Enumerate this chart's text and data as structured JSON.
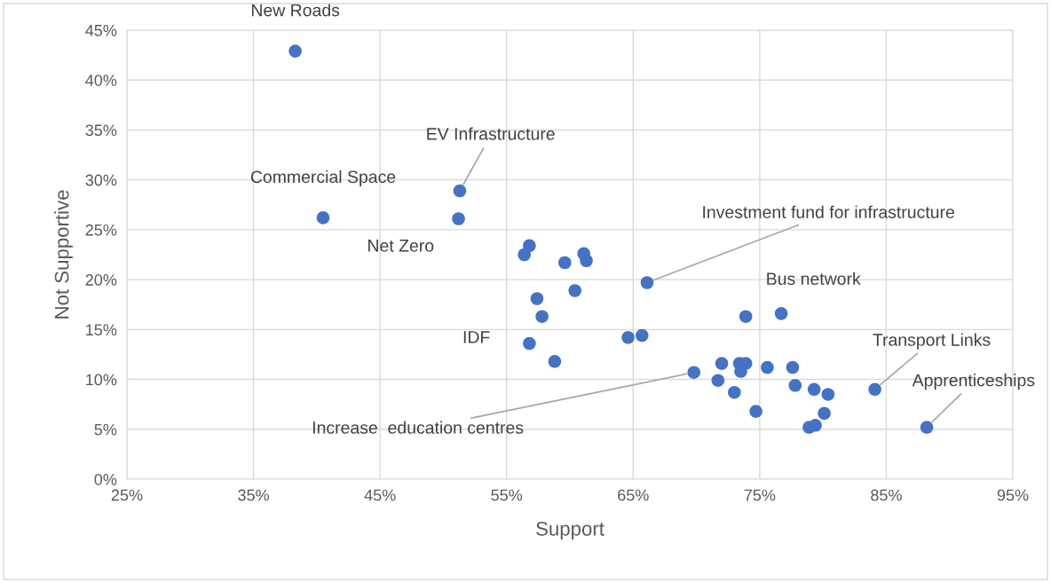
{
  "chart_data": {
    "type": "scatter",
    "xlabel": "Support",
    "ylabel": "Not Supportive",
    "x": [
      38.3,
      40.5,
      51.3,
      51.2,
      56.4,
      56.8,
      59.6,
      61.1,
      61.3,
      57.4,
      57.8,
      60.4,
      56.8,
      58.8,
      64.6,
      65.7,
      66.1,
      73.9,
      76.7,
      69.8,
      72.0,
      71.7,
      73.0,
      73.4,
      73.9,
      73.5,
      74.7,
      75.6,
      77.6,
      77.8,
      79.3,
      80.4,
      80.1,
      78.9,
      79.4,
      84.1,
      88.2
    ],
    "values": [
      42.9,
      26.2,
      28.9,
      26.1,
      22.5,
      23.4,
      21.7,
      22.6,
      21.9,
      18.1,
      16.3,
      18.9,
      13.6,
      11.8,
      14.2,
      14.4,
      19.7,
      16.3,
      16.6,
      10.7,
      11.6,
      9.9,
      8.7,
      11.6,
      11.6,
      10.8,
      6.8,
      11.2,
      11.2,
      9.4,
      9.0,
      8.5,
      6.6,
      5.2,
      5.4,
      9.0,
      5.2
    ],
    "color": "#4472c4",
    "marker": "circle",
    "grid": true,
    "xlim": [
      25,
      95
    ],
    "xticks": [
      {
        "value": 25,
        "label": "25%"
      },
      {
        "value": 35,
        "label": "35%"
      },
      {
        "value": 45,
        "label": "45%"
      },
      {
        "value": 55,
        "label": "55%"
      },
      {
        "value": 65,
        "label": "65%"
      },
      {
        "value": 75,
        "label": "75%"
      },
      {
        "value": 85,
        "label": "85%"
      },
      {
        "value": 95,
        "label": "95%"
      }
    ],
    "ylim": [
      0,
      45
    ],
    "yticks": [
      {
        "value": 0,
        "label": "0%"
      },
      {
        "value": 5,
        "label": "5%"
      },
      {
        "value": 10,
        "label": "10%"
      },
      {
        "value": 15,
        "label": "15%"
      },
      {
        "value": 20,
        "label": "20%"
      },
      {
        "value": 25,
        "label": "25%"
      },
      {
        "value": 30,
        "label": "30%"
      },
      {
        "value": 35,
        "label": "35%"
      },
      {
        "value": 40,
        "label": "40%"
      },
      {
        "value": 45,
        "label": "45%"
      }
    ],
    "annotations": [
      {
        "text": "New Roads",
        "x": 38.3,
        "y": 42.9
      },
      {
        "text": "Commercial Space",
        "x": 40.5,
        "y": 26.2
      },
      {
        "text": "EV Infrastructure",
        "x": 51.3,
        "y": 28.9
      },
      {
        "text": "Net Zero",
        "x": 51.2,
        "y": 26.1
      },
      {
        "text": "IDF",
        "x": 56.8,
        "y": 13.6
      },
      {
        "text": "Investment fund for infrastructure",
        "x": 66.1,
        "y": 19.7
      },
      {
        "text": "Bus network",
        "x": 76.7,
        "y": 16.6
      },
      {
        "text": "Transport Links",
        "x": 84.1,
        "y": 9.0
      },
      {
        "text": "Apprenticeships",
        "x": 88.2,
        "y": 5.2
      },
      {
        "text": "Increase  education centres",
        "x": 69.8,
        "y": 10.7
      }
    ]
  }
}
